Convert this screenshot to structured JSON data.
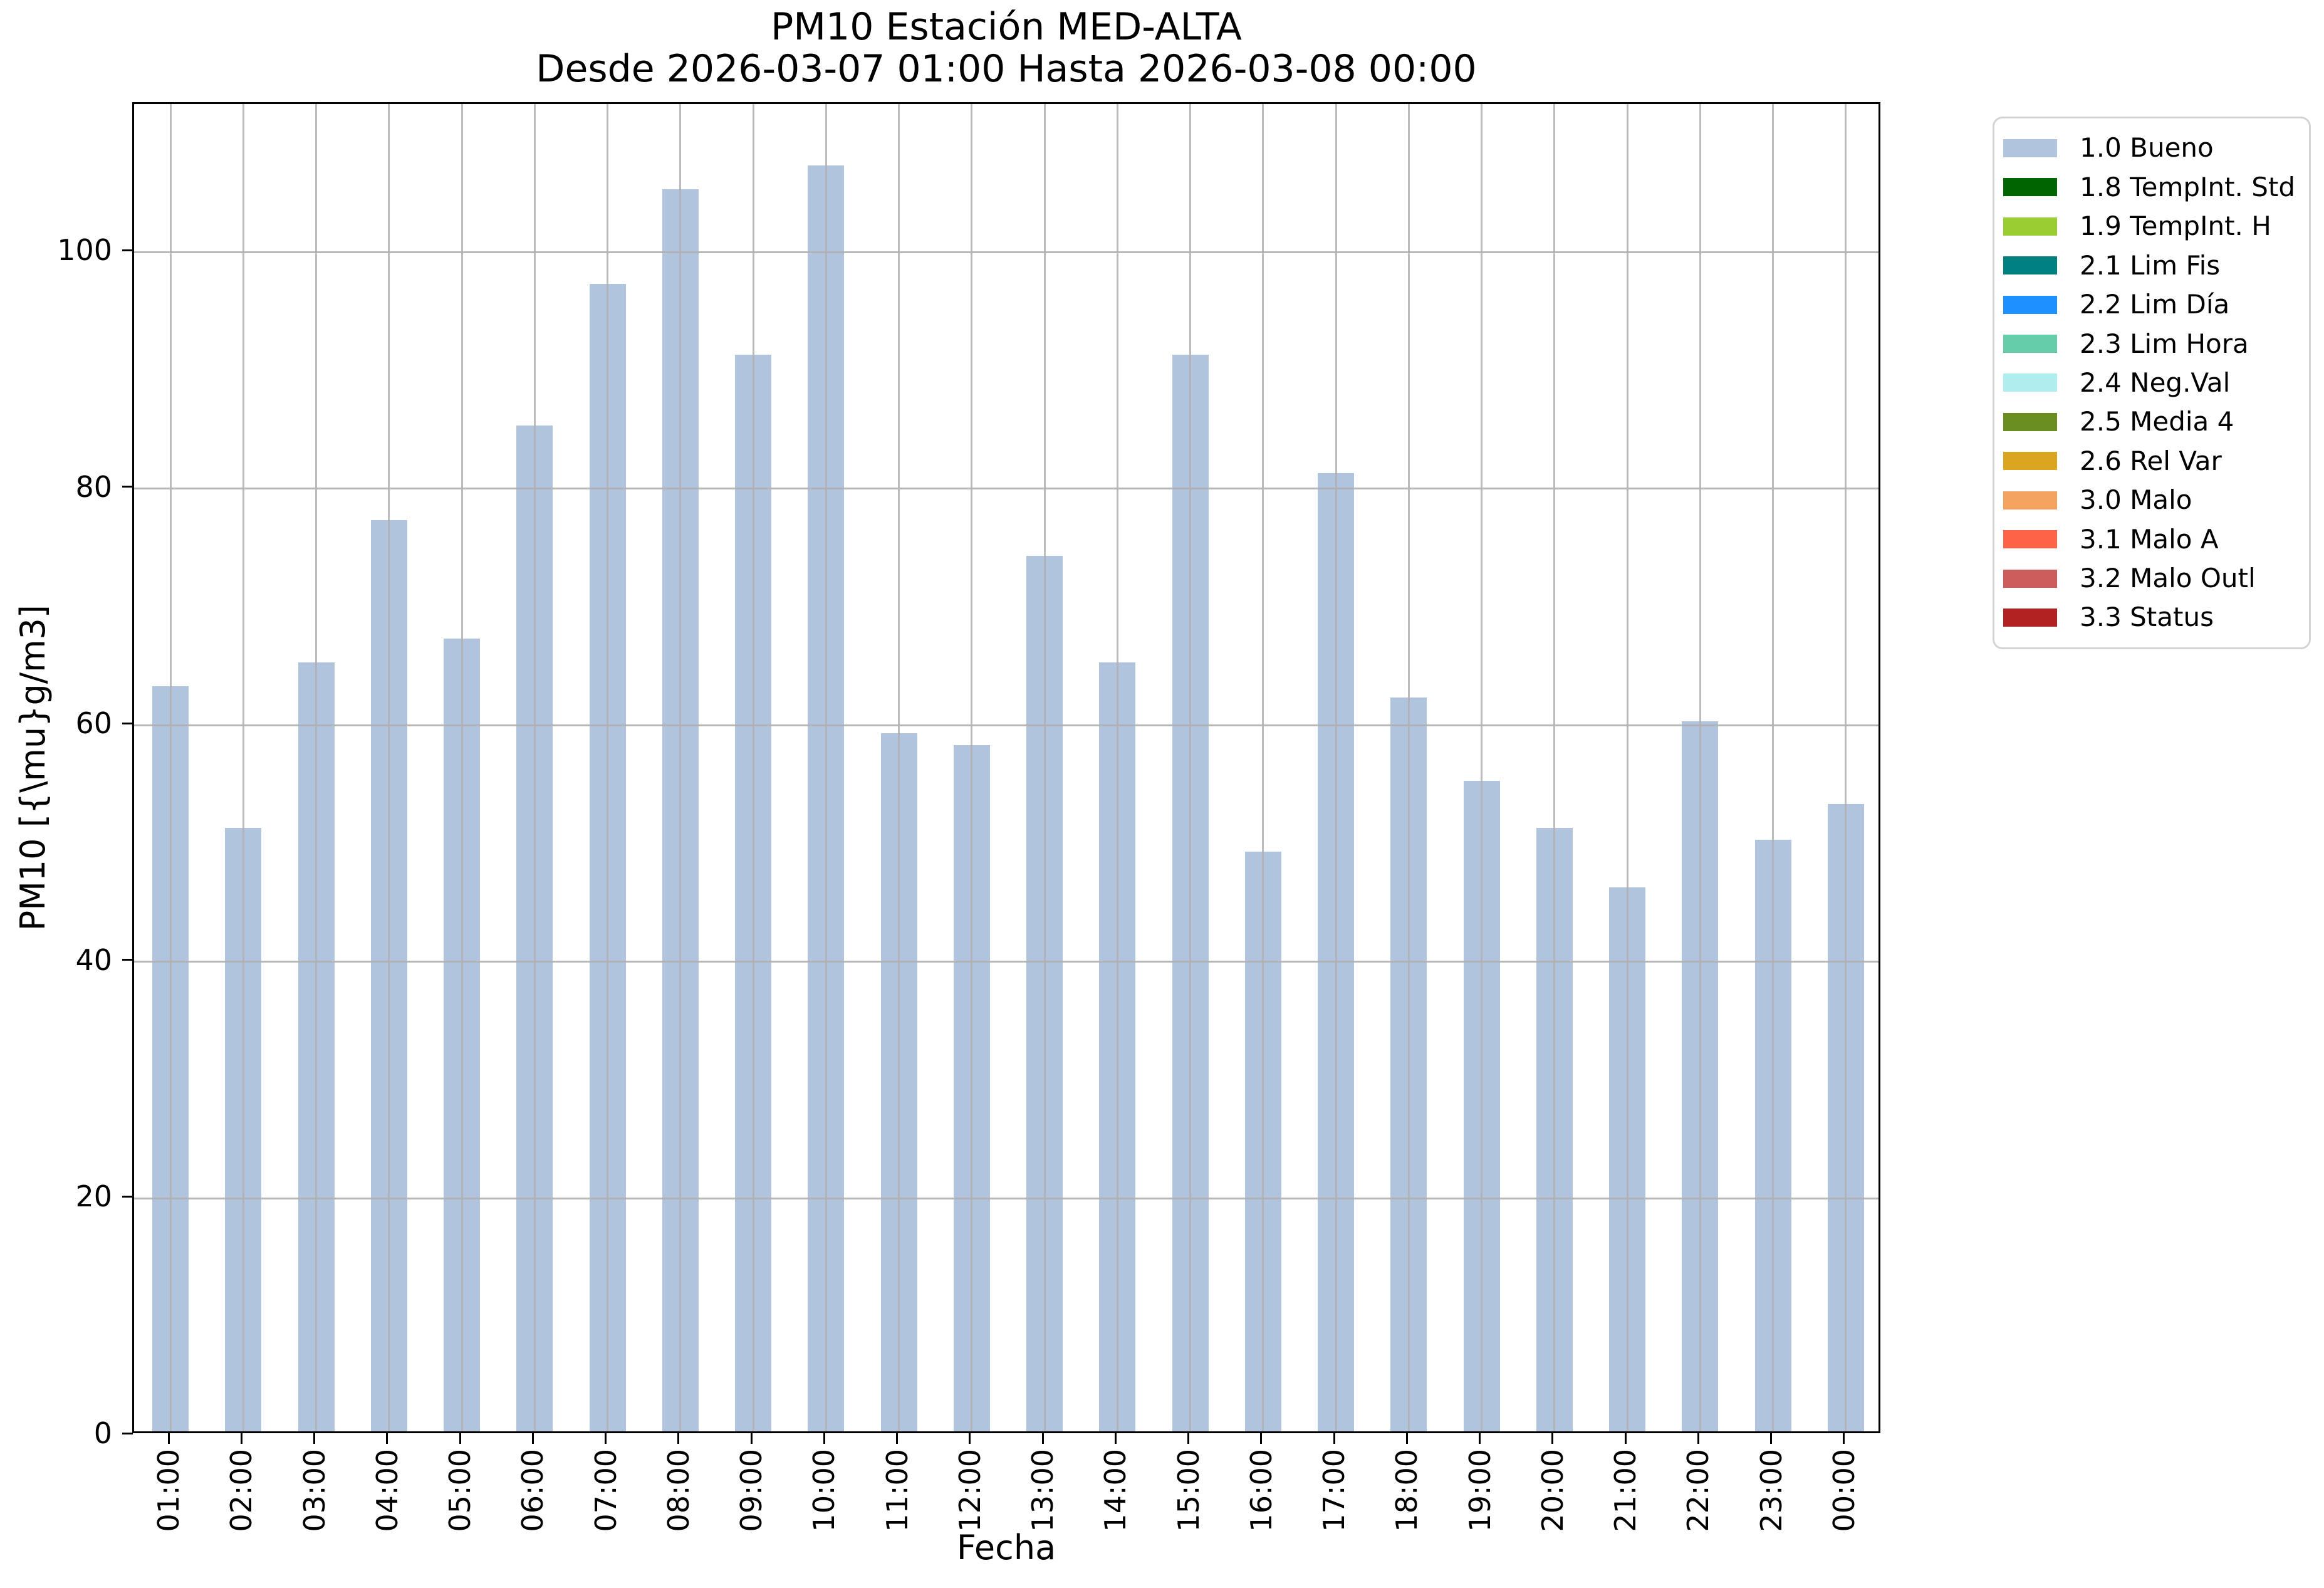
{
  "figure": {
    "title_line1": "PM10 Estación MED-ALTA",
    "title_line2": "Desde 2026-03-07 01:00 Hasta 2026-03-08 00:00",
    "xlabel": "Fecha",
    "ylabel": "PM10 [{\\mu}g/m3]"
  },
  "chart_data": {
    "type": "bar",
    "title": "PM10 Estación MED-ALTA\nDesde 2026-03-07 01:00 Hasta 2026-03-08 00:00",
    "xlabel": "Fecha",
    "ylabel": "PM10 [{\\mu}g/m3]",
    "categories": [
      "01:00",
      "02:00",
      "03:00",
      "04:00",
      "05:00",
      "06:00",
      "07:00",
      "08:00",
      "09:00",
      "10:00",
      "11:00",
      "12:00",
      "13:00",
      "14:00",
      "15:00",
      "16:00",
      "17:00",
      "18:00",
      "19:00",
      "20:00",
      "21:00",
      "22:00",
      "23:00",
      "00:00"
    ],
    "values": [
      63,
      51,
      65,
      77,
      67,
      85,
      97,
      105,
      91,
      107,
      59,
      58,
      74,
      65,
      91,
      49,
      81,
      62,
      55,
      51,
      46,
      60,
      50,
      53
    ],
    "series_name": "1.0 Bueno",
    "bar_color": "#b0c4de",
    "grid": true,
    "gridline_color": "#b0b0b0",
    "ylim": [
      0,
      112.5
    ],
    "yticks": [
      0,
      20,
      40,
      60,
      80,
      100
    ],
    "legend_position": "right",
    "legend": [
      {
        "label": "1.0 Bueno",
        "color": "#b0c4de"
      },
      {
        "label": "1.8 TempInt. Std",
        "color": "#006400"
      },
      {
        "label": "1.9 TempInt. H",
        "color": "#9acd32"
      },
      {
        "label": "2.1 Lim Fis",
        "color": "#008080"
      },
      {
        "label": "2.2 Lim Día",
        "color": "#1e90ff"
      },
      {
        "label": "2.3 Lim Hora",
        "color": "#66cdaa"
      },
      {
        "label": "2.4 Neg.Val",
        "color": "#afeeee"
      },
      {
        "label": "2.5 Media 4",
        "color": "#6b8e23"
      },
      {
        "label": "2.6 Rel Var",
        "color": "#daa520"
      },
      {
        "label": "3.0 Malo",
        "color": "#f4a460"
      },
      {
        "label": "3.1 Malo A",
        "color": "#ff6347"
      },
      {
        "label": "3.2 Malo Outl",
        "color": "#cd5c5c"
      },
      {
        "label": "3.3 Status",
        "color": "#b22222"
      }
    ]
  }
}
